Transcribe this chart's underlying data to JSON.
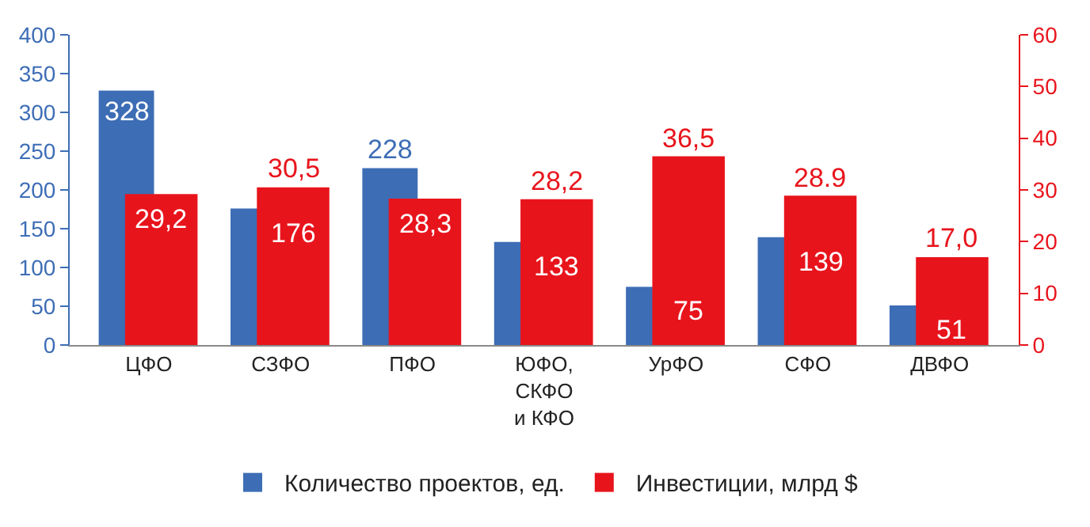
{
  "chart_data": {
    "type": "bar",
    "categories": [
      "ЦФО",
      "СЗФО",
      "ПФО",
      "ЮФО, СКФО и КФО",
      "УрФО",
      "СФО",
      "ДВФО"
    ],
    "series": [
      {
        "name": "Количество проектов, ед.",
        "color": "#3d6db5",
        "values": [
          328,
          176,
          228,
          133,
          75,
          139,
          51
        ],
        "value_labels": [
          "328",
          "176",
          "228",
          "133",
          "75",
          "139",
          "51"
        ]
      },
      {
        "name": "Инвестиции, млрд $",
        "color": "#e8141c",
        "axis": "y2",
        "values": [
          29.2,
          30.5,
          28.3,
          28.2,
          36.5,
          28.9,
          17.0
        ],
        "value_labels": [
          "29,2",
          "30,5",
          "28,3",
          "28,2",
          "36,5",
          "28.9",
          "17,0"
        ]
      }
    ],
    "ylim": [
      0,
      400
    ],
    "yticks": [
      0,
      50,
      100,
      150,
      200,
      250,
      300,
      350,
      400
    ],
    "y2lim": [
      0,
      60
    ],
    "y2ticks": [
      0,
      10,
      20,
      30,
      40,
      50,
      60
    ],
    "legend": "bottom"
  }
}
